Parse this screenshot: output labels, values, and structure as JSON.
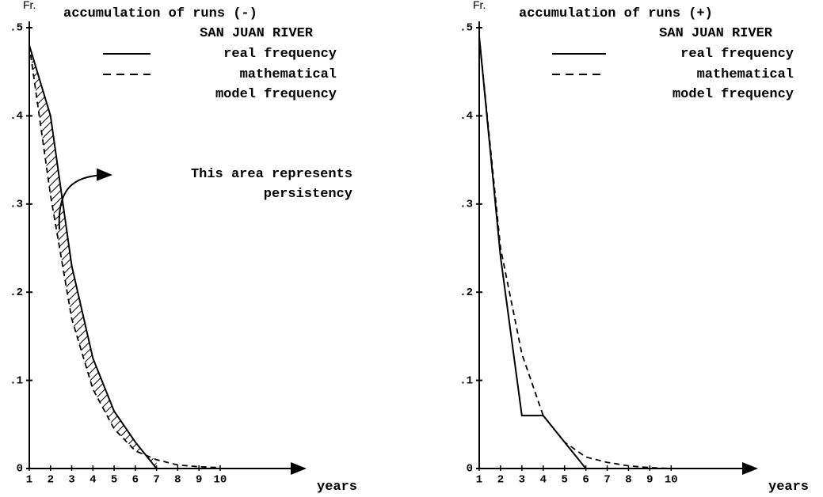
{
  "chart_data": [
    {
      "type": "line",
      "title": "accumulation of runs (-)",
      "subtitle": "SAN JUAN RIVER",
      "xlabel": "years",
      "ylabel": "Fr.",
      "x": [
        1,
        2,
        3,
        4,
        5,
        6,
        7,
        8,
        9,
        10
      ],
      "series": [
        {
          "name": "real frequency",
          "color": "#000000",
          "dash": false,
          "values": [
            0.48,
            0.4,
            0.23,
            0.125,
            0.065,
            0.03,
            0,
            null,
            null,
            null
          ]
        },
        {
          "name": "mathematical model frequency",
          "color": "#000000",
          "dash": true,
          "values": [
            0.48,
            0.31,
            0.17,
            0.09,
            0.045,
            0.02,
            0.01,
            0.004,
            0.002,
            0.001
          ]
        }
      ],
      "annotation": "This area represents persistency",
      "xlim": [
        1,
        14
      ],
      "ylim": [
        0,
        0.5
      ],
      "xticks": [
        1,
        2,
        3,
        4,
        5,
        6,
        7,
        8,
        9,
        10
      ],
      "yticks": [
        0,
        {
          "value": 0.1,
          "label": ".1"
        },
        {
          "value": 0.2,
          "label": ".2"
        },
        {
          "value": 0.3,
          "label": ".3"
        },
        {
          "value": 0.4,
          "label": ".4"
        },
        {
          "value": 0.5,
          "label": ".5"
        }
      ]
    },
    {
      "type": "line",
      "title": "accumulation of runs (+)",
      "subtitle": "SAN JUAN RIVER",
      "xlabel": "years",
      "ylabel": "Fr.",
      "x": [
        1,
        2,
        3,
        4,
        5,
        6,
        7,
        8,
        9,
        10
      ],
      "series": [
        {
          "name": "real frequency",
          "color": "#000000",
          "dash": false,
          "values": [
            0.49,
            0.24,
            0.06,
            0.06,
            0.03,
            0,
            null,
            null,
            null,
            null
          ]
        },
        {
          "name": "mathematical model frequency",
          "color": "#000000",
          "dash": true,
          "values": [
            0.49,
            0.25,
            0.13,
            0.06,
            0.03,
            0.013,
            0.007,
            0.003,
            0.001,
            0
          ]
        }
      ],
      "xlim": [
        1,
        14
      ],
      "ylim": [
        0,
        0.5
      ],
      "xticks": [
        1,
        2,
        3,
        4,
        5,
        6,
        7,
        8,
        9,
        10
      ],
      "yticks": [
        0,
        {
          "value": 0.1,
          "label": ".1"
        },
        {
          "value": 0.2,
          "label": ".2"
        },
        {
          "value": 0.3,
          "label": ".3"
        },
        {
          "value": 0.4,
          "label": ".4"
        },
        {
          "value": 0.5,
          "label": ".5"
        }
      ]
    }
  ]
}
